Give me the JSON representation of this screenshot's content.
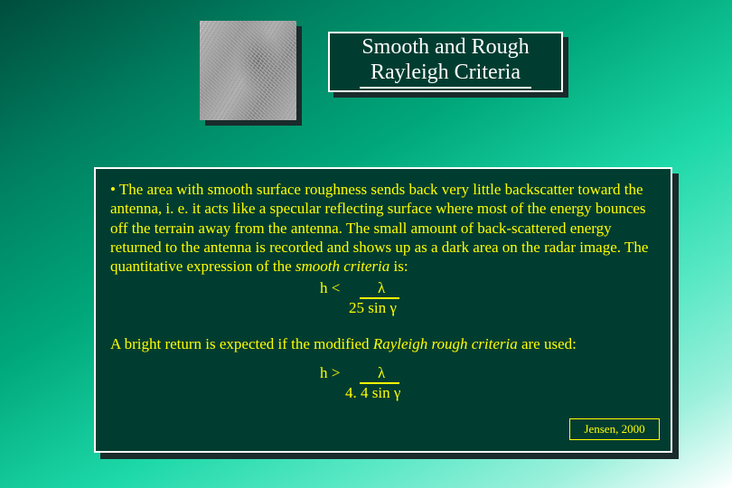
{
  "title": {
    "line1": "Smooth and Rough",
    "line2": "Rayleigh Criteria"
  },
  "content": {
    "para_pre": "• The area with smooth surface roughness sends back very little backscatter toward the antenna, i. e. it acts like a specular reflecting surface where most of the energy bounces off the terrain away from the antenna. The small amount of back-scattered energy returned to the antenna is recorded and shows up as a dark area on the radar image. The quantitative expression of the ",
    "para_em": "smooth criteria",
    "para_post": " is:",
    "formula1": {
      "lhs": "h <",
      "numerator": "λ",
      "denominator": "25 sin γ"
    },
    "rough_pre": "A bright return is expected if the modified ",
    "rough_em": "Rayleigh rough criteria",
    "rough_post": " are used:",
    "formula2": {
      "lhs": "h >",
      "numerator": "λ",
      "denominator": "4. 4 sin γ"
    }
  },
  "attribution": "Jensen, 2000",
  "colors": {
    "bg_dark": "#003d30",
    "shadow": "#1a2b2b",
    "text": "#ffff00",
    "title_text": "#ffffff",
    "border": "#ffffff"
  }
}
